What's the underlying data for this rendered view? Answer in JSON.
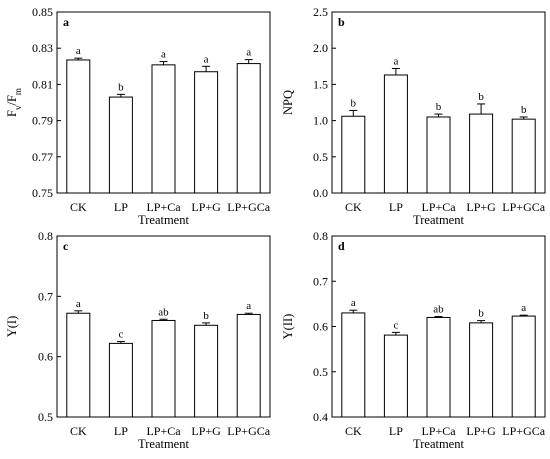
{
  "chart_data": [
    {
      "type": "bar",
      "panel": "a",
      "ylabel": "Fv/Fm",
      "ylabel_main": "F",
      "ylabel_sub1": "v",
      "ylabel_sep": "/F",
      "ylabel_sub2": "m",
      "xlabel": "Treatment",
      "categories": [
        "CK",
        "LP",
        "LP+Ca",
        "LP+G",
        "LP+GCa"
      ],
      "values": [
        0.8235,
        0.803,
        0.8208,
        0.817,
        0.8215
      ],
      "errors": [
        0.001,
        0.0015,
        0.0018,
        0.003,
        0.0022
      ],
      "significance": [
        "a",
        "b",
        "a",
        "a",
        "a"
      ],
      "ylim": [
        0.75,
        0.85
      ],
      "yticks": [
        "0.75",
        "0.77",
        "0.79",
        "0.81",
        "0.83",
        "0.85"
      ],
      "tickvals": [
        0.75,
        0.77,
        0.79,
        0.81,
        0.83,
        0.85
      ]
    },
    {
      "type": "bar",
      "panel": "b",
      "ylabel": "NPQ",
      "xlabel": "Treatment",
      "categories": [
        "CK",
        "LP",
        "LP+Ca",
        "LP+G",
        "LP+GCa"
      ],
      "values": [
        1.06,
        1.63,
        1.05,
        1.09,
        1.02
      ],
      "errors": [
        0.08,
        0.09,
        0.04,
        0.14,
        0.03
      ],
      "significance": [
        "b",
        "a",
        "b",
        "b",
        "b"
      ],
      "ylim": [
        0.0,
        2.5
      ],
      "yticks": [
        "0.0",
        "0.5",
        "1.0",
        "1.5",
        "2.0",
        "2.5"
      ],
      "tickvals": [
        0.0,
        0.5,
        1.0,
        1.5,
        2.0,
        2.5
      ]
    },
    {
      "type": "bar",
      "panel": "c",
      "ylabel": "Y(I)",
      "xlabel": "Treatment",
      "categories": [
        "CK",
        "LP",
        "LP+Ca",
        "LP+G",
        "LP+GCa"
      ],
      "values": [
        0.672,
        0.622,
        0.66,
        0.652,
        0.67
      ],
      "errors": [
        0.004,
        0.003,
        0.002,
        0.004,
        0.002
      ],
      "significance": [
        "a",
        "c",
        "ab",
        "b",
        "a"
      ],
      "ylim": [
        0.5,
        0.8
      ],
      "yticks": [
        "0.5",
        "0.6",
        "0.7",
        "0.8"
      ],
      "tickvals": [
        0.5,
        0.6,
        0.7,
        0.8
      ]
    },
    {
      "type": "bar",
      "panel": "d",
      "ylabel": "Y(II)",
      "xlabel": "Treatment",
      "categories": [
        "CK",
        "LP",
        "LP+Ca",
        "LP+G",
        "LP+GCa"
      ],
      "values": [
        0.63,
        0.581,
        0.62,
        0.608,
        0.623
      ],
      "errors": [
        0.006,
        0.006,
        0.002,
        0.005,
        0.002
      ],
      "significance": [
        "a",
        "c",
        "ab",
        "b",
        "a"
      ],
      "ylim": [
        0.4,
        0.8
      ],
      "yticks": [
        "0.4",
        "0.5",
        "0.6",
        "0.7",
        "0.8"
      ],
      "tickvals": [
        0.4,
        0.5,
        0.6,
        0.7,
        0.8
      ]
    }
  ]
}
